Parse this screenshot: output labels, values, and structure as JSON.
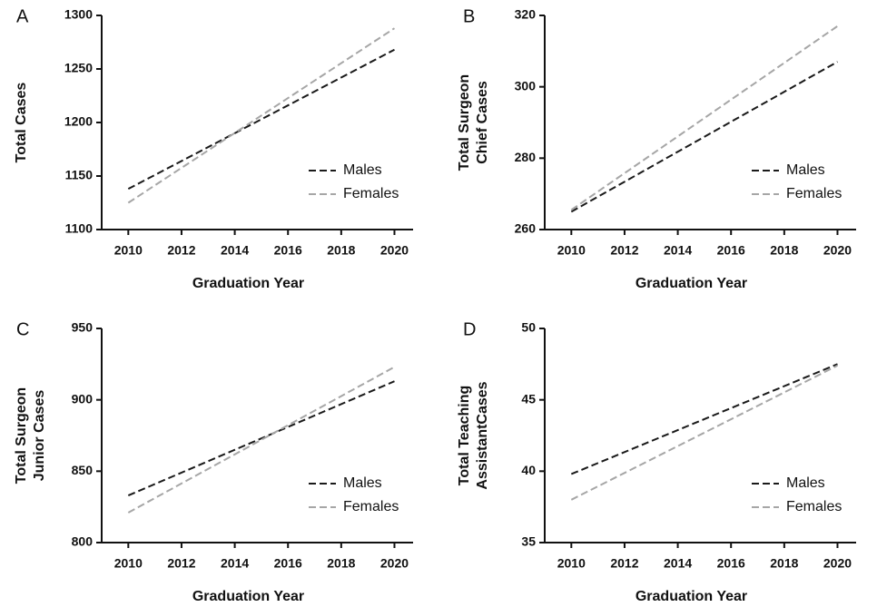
{
  "chart_data": [
    {
      "type": "line",
      "panel": "A",
      "xlabel": "Graduation Year",
      "ylabel": [
        "Total Cases"
      ],
      "x": [
        2010,
        2020
      ],
      "xlim": [
        2009,
        2020.7
      ],
      "xticks": [
        2010,
        2012,
        2014,
        2016,
        2018,
        2020
      ],
      "ylim": [
        1100,
        1300
      ],
      "yticks": [
        1100,
        1150,
        1200,
        1250,
        1300
      ],
      "legend": "lower right",
      "series": [
        {
          "name": "Males",
          "color": "#1a1a1a",
          "values": [
            1138,
            1268
          ]
        },
        {
          "name": "Females",
          "color": "#a6a6a6",
          "values": [
            1125,
            1288
          ]
        }
      ]
    },
    {
      "type": "line",
      "panel": "B",
      "xlabel": "Graduation Year",
      "ylabel": [
        "Total Surgeon",
        "Chief Cases"
      ],
      "x": [
        2010,
        2020
      ],
      "xlim": [
        2009,
        2020.7
      ],
      "xticks": [
        2010,
        2012,
        2014,
        2016,
        2018,
        2020
      ],
      "ylim": [
        260,
        320
      ],
      "yticks": [
        260,
        280,
        300,
        320
      ],
      "legend": "lower right",
      "series": [
        {
          "name": "Males",
          "color": "#1a1a1a",
          "values": [
            265,
            307
          ]
        },
        {
          "name": "Females",
          "color": "#a6a6a6",
          "values": [
            265.5,
            317
          ]
        }
      ]
    },
    {
      "type": "line",
      "panel": "C",
      "xlabel": "Graduation Year",
      "ylabel": [
        "Total Surgeon",
        "Junior Cases"
      ],
      "x": [
        2010,
        2020
      ],
      "xlim": [
        2009,
        2020.7
      ],
      "xticks": [
        2010,
        2012,
        2014,
        2016,
        2018,
        2020
      ],
      "ylim": [
        800,
        950
      ],
      "yticks": [
        800,
        850,
        900,
        950
      ],
      "legend": "lower right",
      "series": [
        {
          "name": "Males",
          "color": "#1a1a1a",
          "values": [
            833,
            913
          ]
        },
        {
          "name": "Females",
          "color": "#a6a6a6",
          "values": [
            821,
            923
          ]
        }
      ]
    },
    {
      "type": "line",
      "panel": "D",
      "xlabel": "Graduation Year",
      "ylabel": [
        "Total Teaching",
        "AssistantCases"
      ],
      "x": [
        2010,
        2020
      ],
      "xlim": [
        2009,
        2020.7
      ],
      "xticks": [
        2010,
        2012,
        2014,
        2016,
        2018,
        2020
      ],
      "ylim": [
        35,
        50
      ],
      "yticks": [
        35,
        40,
        45,
        50
      ],
      "legend": "lower right",
      "series": [
        {
          "name": "Males",
          "color": "#1a1a1a",
          "values": [
            39.8,
            47.5
          ]
        },
        {
          "name": "Females",
          "color": "#a6a6a6",
          "values": [
            38,
            47.4
          ]
        }
      ]
    }
  ]
}
